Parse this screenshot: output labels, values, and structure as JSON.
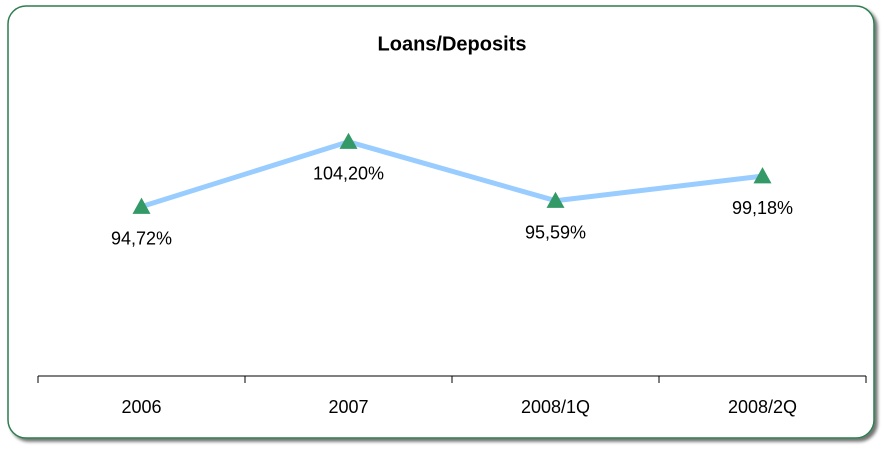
{
  "chart_data": {
    "type": "line",
    "title": "Loans/Deposits",
    "categories": [
      "2006",
      "2007",
      "2008/1Q",
      "2008/2Q"
    ],
    "values": [
      94.72,
      104.2,
      95.59,
      99.18
    ],
    "value_labels": [
      "94,72%",
      "104,20%",
      "95,59%",
      "99,18%"
    ],
    "color": "#99ccff",
    "marker_color": "#339966",
    "ylim": [
      70,
      110
    ]
  }
}
